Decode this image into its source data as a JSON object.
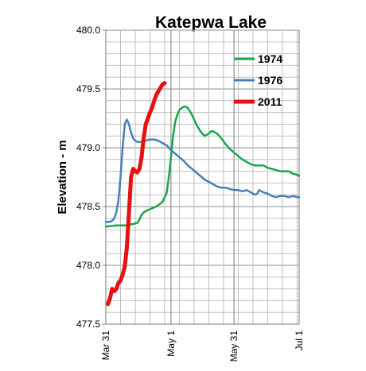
{
  "chart_data": {
    "type": "line",
    "title": "Katepwa Lake",
    "ylabel": "Elevation - m",
    "xlabel": "",
    "ylim": [
      477.5,
      480.0
    ],
    "yticks": [
      "480.0",
      "479.5",
      "479.0",
      "478.5",
      "478.0",
      "477.5"
    ],
    "ytick_values": [
      480.0,
      479.5,
      479.0,
      478.5,
      478.0,
      477.5
    ],
    "xlim": [
      0,
      92
    ],
    "xticks": [
      {
        "label": "Mar 31",
        "day": 0
      },
      {
        "label": "May 1",
        "day": 31
      },
      {
        "label": "May 31",
        "day": 61
      },
      {
        "label": "Jul 1",
        "day": 92
      }
    ],
    "grid": true,
    "legend_position": "top-right",
    "series": [
      {
        "name": "1974",
        "color": "#1aa64a",
        "x": [
          0,
          5,
          10,
          15,
          16,
          17,
          18,
          20,
          24,
          27,
          29,
          30,
          31,
          32,
          33,
          34,
          35,
          37,
          38,
          39,
          40,
          41,
          43,
          45,
          47,
          49,
          50,
          51,
          53,
          54,
          55,
          57,
          59,
          61,
          63,
          65,
          67,
          69,
          71,
          73,
          75,
          77,
          79,
          81,
          83,
          85,
          87,
          89,
          91,
          92
        ],
        "y": [
          478.33,
          478.34,
          478.34,
          478.36,
          478.39,
          478.43,
          478.45,
          478.47,
          478.5,
          478.54,
          478.62,
          478.75,
          478.92,
          479.1,
          479.22,
          479.28,
          479.32,
          479.35,
          479.35,
          479.34,
          479.31,
          479.28,
          479.2,
          479.14,
          479.1,
          479.12,
          479.14,
          479.14,
          479.12,
          479.1,
          479.08,
          479.03,
          478.99,
          478.96,
          478.93,
          478.9,
          478.88,
          478.86,
          478.85,
          478.85,
          478.85,
          478.83,
          478.82,
          478.81,
          478.8,
          478.8,
          478.8,
          478.78,
          478.77,
          478.76
        ]
      },
      {
        "name": "1976",
        "color": "#4a7fb5",
        "x": [
          0,
          2,
          3,
          4,
          5,
          6,
          7,
          8,
          9,
          10,
          11,
          12,
          13,
          14,
          15,
          17,
          19,
          21,
          22,
          23,
          25,
          27,
          29,
          31,
          33,
          35,
          37,
          39,
          41,
          43,
          45,
          47,
          49,
          51,
          53,
          55,
          57,
          59,
          61,
          63,
          65,
          67,
          69,
          71,
          72,
          73,
          75,
          77,
          79,
          81,
          83,
          85,
          87,
          89,
          91,
          92
        ],
        "y": [
          478.37,
          478.37,
          478.38,
          478.4,
          478.45,
          478.55,
          478.75,
          479.0,
          479.2,
          479.24,
          479.2,
          479.13,
          479.08,
          479.06,
          479.05,
          479.05,
          479.06,
          479.07,
          479.07,
          479.07,
          479.06,
          479.04,
          479.02,
          478.98,
          478.95,
          478.92,
          478.89,
          478.85,
          478.82,
          478.79,
          478.76,
          478.73,
          478.71,
          478.69,
          478.67,
          478.66,
          478.66,
          478.65,
          478.64,
          478.64,
          478.63,
          478.64,
          478.62,
          478.6,
          478.61,
          478.64,
          478.62,
          478.61,
          478.59,
          478.58,
          478.59,
          478.59,
          478.58,
          478.59,
          478.58,
          478.58
        ]
      },
      {
        "name": "2011",
        "color": "#e81010",
        "x": [
          1,
          2,
          3,
          4,
          5,
          6,
          7,
          8,
          9,
          10,
          11,
          12,
          13,
          14,
          15,
          16,
          17,
          18,
          19,
          20,
          21,
          22,
          23,
          24,
          25,
          26,
          27,
          28
        ],
        "y": [
          477.67,
          477.72,
          477.8,
          477.78,
          477.8,
          477.85,
          477.87,
          477.92,
          477.99,
          478.15,
          478.45,
          478.75,
          478.82,
          478.8,
          478.79,
          478.82,
          478.92,
          479.08,
          479.2,
          479.25,
          479.3,
          479.34,
          479.4,
          479.45,
          479.48,
          479.51,
          479.54,
          479.55
        ]
      }
    ]
  }
}
